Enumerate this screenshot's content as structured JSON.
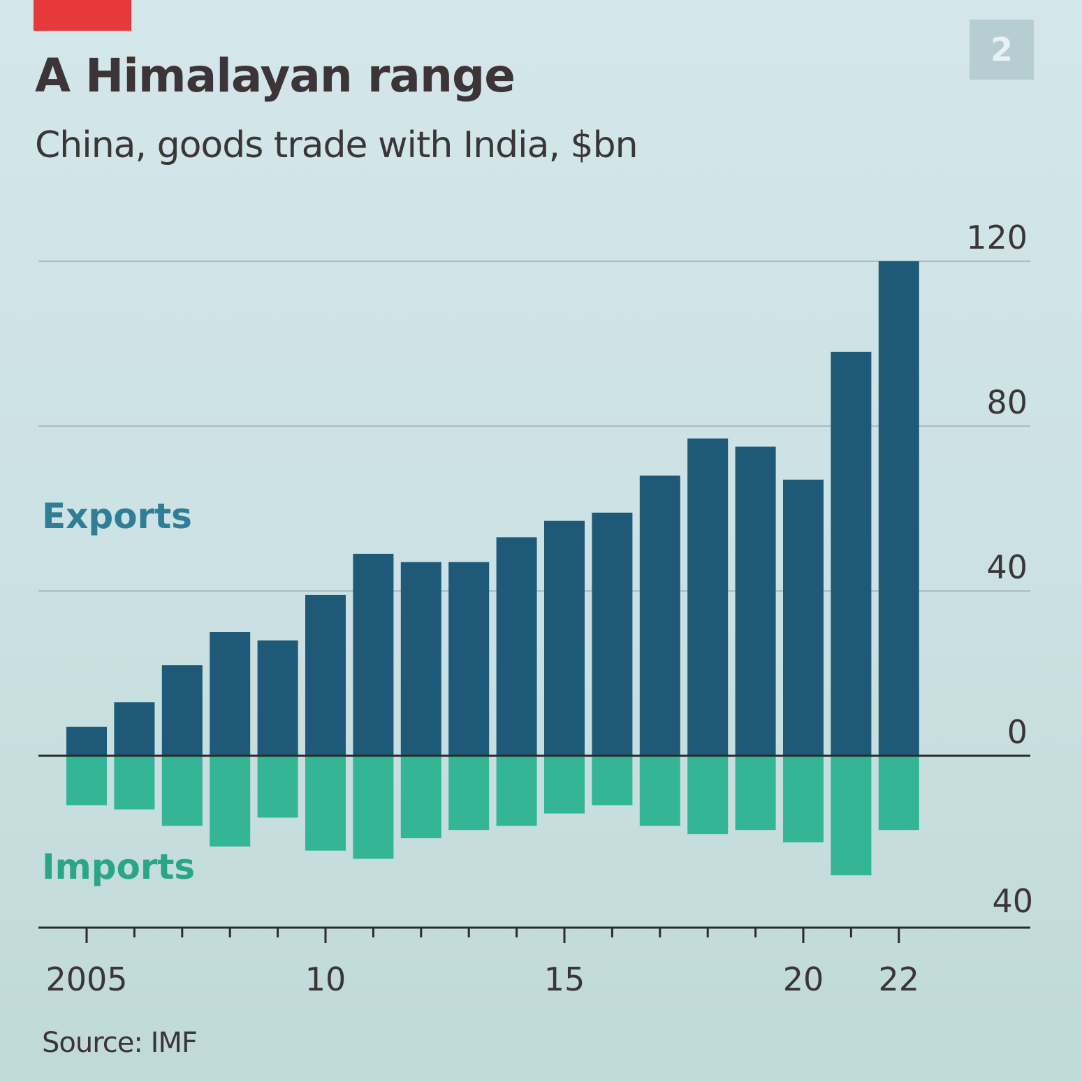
{
  "header": {
    "chart_number": "2",
    "title": "A Himalayan range",
    "subtitle": "China, goods trade with India, $bn"
  },
  "footer": {
    "source": "Source: IMF"
  },
  "colors": {
    "exports": "#1e5a78",
    "imports": "#33b596",
    "exports_label": "#2f7e96",
    "imports_label": "#2aa585",
    "accent": "#e8393a"
  },
  "chart_data": {
    "type": "bar",
    "title": "A Himalayan range",
    "subtitle": "China, goods trade with India, $bn",
    "x": [
      2005,
      2006,
      2007,
      2008,
      2009,
      2010,
      2011,
      2012,
      2013,
      2014,
      2015,
      2016,
      2017,
      2018,
      2019,
      2020,
      2021,
      2022
    ],
    "x_tick_labels": [
      {
        "year": 2005,
        "label": "2005"
      },
      {
        "year": 2010,
        "label": "10"
      },
      {
        "year": 2015,
        "label": "15"
      },
      {
        "year": 2020,
        "label": "20"
      },
      {
        "year": 2022,
        "label": "22"
      }
    ],
    "series": [
      {
        "name": "Exports",
        "values": [
          7,
          13,
          22,
          30,
          28,
          39,
          49,
          47,
          47,
          53,
          57,
          59,
          68,
          77,
          75,
          67,
          98,
          120
        ]
      },
      {
        "name": "Imports",
        "values": [
          12,
          13,
          17,
          22,
          15,
          23,
          25,
          20,
          18,
          17,
          14,
          12,
          17,
          19,
          18,
          21,
          29,
          18
        ]
      }
    ],
    "y_ticks_exports": [
      0,
      40,
      80,
      120
    ],
    "y_ticks_imports": [
      40
    ],
    "ylim": [
      -40,
      120
    ],
    "grid": true,
    "legend": "direct labels left"
  }
}
